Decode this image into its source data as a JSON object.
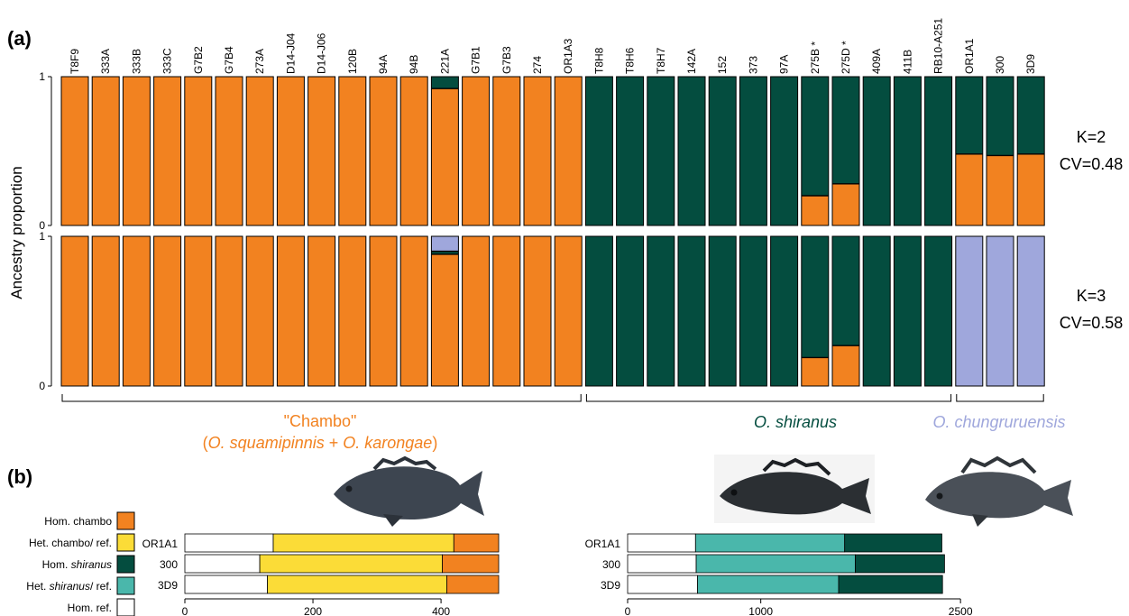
{
  "figure": {
    "panel_a_label": "(a)",
    "panel_b_label": "(b)",
    "ylabel": "Ancestry proportion",
    "y_ticks": [
      "1",
      "0"
    ],
    "runs": [
      {
        "k_label": "K=2",
        "cv_label": "CV=0.48"
      },
      {
        "k_label": "K=3",
        "cv_label": "CV=0.58"
      }
    ],
    "groups": [
      {
        "line1": "\"Chambo\"",
        "line2_parts": [
          "(",
          "O. squamipinnis",
          " + ",
          "O. karongae",
          ")"
        ],
        "color": "#f28220",
        "from": 0,
        "to": 16
      },
      {
        "line1": "O. shiranus",
        "color": "#044d3f",
        "from": 17,
        "to": 28
      },
      {
        "line1": "O. chungruruensis",
        "color": "#9fa7dc",
        "from": 29,
        "to": 31
      }
    ],
    "legend": [
      {
        "label": "Hom. chambo",
        "color": "#f28220"
      },
      {
        "label_parts": [
          "Het. chambo/ ref."
        ],
        "color": "#fbdc37"
      },
      {
        "label_parts": [
          "Hom. ",
          "shiranus"
        ],
        "color": "#044d3f"
      },
      {
        "label_parts": [
          "Het. ",
          "shiranus",
          "/ ref."
        ],
        "color": "#4ab7ab"
      },
      {
        "label": "Hom. ref.",
        "color": "#ffffff"
      }
    ],
    "colors": {
      "chambo": "#f28220",
      "shiranus": "#044d3f",
      "chungruruensis": "#9fa7dc",
      "het_chambo": "#fbdc37",
      "het_shiranus": "#4ab7ab",
      "hom_ref": "#ffffff"
    }
  },
  "chart_data": [
    {
      "type": "bar",
      "subtype": "stacked-proportion",
      "title": "K=2 CV=0.48",
      "categories": [
        "T8F9",
        "333A",
        "333B",
        "333C",
        "G7B2",
        "G7B4",
        "273A",
        "D14-J04",
        "D14-J06",
        "120B",
        "94A",
        "94B",
        "221A",
        "G7B1",
        "G7B3",
        "274",
        "OR1A3",
        "T8H8",
        "T8H6",
        "T8H7",
        "142A",
        "152",
        "373",
        "97A",
        "275B *",
        "275D *",
        "409A",
        "411B",
        "RB10-A251",
        "OR1A1",
        "300",
        "3D9"
      ],
      "ylim": [
        0,
        1
      ],
      "series": [
        {
          "color": "#f28220",
          "values": [
            1,
            1,
            1,
            1,
            1,
            1,
            1,
            1,
            1,
            1,
            1,
            1,
            0.92,
            1,
            1,
            1,
            1,
            0,
            0,
            0,
            0,
            0,
            0,
            0,
            0.2,
            0.28,
            0,
            0,
            0,
            0.48,
            0.47,
            0.48
          ]
        },
        {
          "color": "#044d3f",
          "values": [
            0,
            0,
            0,
            0,
            0,
            0,
            0,
            0,
            0,
            0,
            0,
            0,
            0.08,
            0,
            0,
            0,
            0,
            1,
            1,
            1,
            1,
            1,
            1,
            1,
            0.8,
            0.72,
            1,
            1,
            1,
            0.52,
            0.53,
            0.52
          ]
        }
      ]
    },
    {
      "type": "bar",
      "subtype": "stacked-proportion",
      "title": "K=3 CV=0.58",
      "categories": [
        "T8F9",
        "333A",
        "333B",
        "333C",
        "G7B2",
        "G7B4",
        "273A",
        "D14-J04",
        "D14-J06",
        "120B",
        "94A",
        "94B",
        "221A",
        "G7B1",
        "G7B3",
        "274",
        "OR1A3",
        "T8H8",
        "T8H6",
        "T8H7",
        "142A",
        "152",
        "373",
        "97A",
        "275B *",
        "275D *",
        "409A",
        "411B",
        "RB10-A251",
        "OR1A1",
        "300",
        "3D9"
      ],
      "ylim": [
        0,
        1
      ],
      "series": [
        {
          "color": "#f28220",
          "values": [
            1,
            1,
            1,
            1,
            1,
            1,
            1,
            1,
            1,
            1,
            1,
            1,
            0.88,
            1,
            1,
            1,
            1,
            0,
            0,
            0,
            0,
            0,
            0,
            0,
            0.19,
            0.27,
            0,
            0,
            0,
            0,
            0,
            0
          ]
        },
        {
          "color": "#044d3f",
          "values": [
            0,
            0,
            0,
            0,
            0,
            0,
            0,
            0,
            0,
            0,
            0,
            0,
            0.02,
            0,
            0,
            0,
            0,
            1,
            1,
            1,
            1,
            1,
            1,
            1,
            0.81,
            0.73,
            1,
            1,
            1,
            0,
            0,
            0
          ]
        },
        {
          "color": "#9fa7dc",
          "values": [
            0,
            0,
            0,
            0,
            0,
            0,
            0,
            0,
            0,
            0,
            0,
            0,
            0.1,
            0,
            0,
            0,
            0,
            0,
            0,
            0,
            0,
            0,
            0,
            0,
            0,
            0,
            0,
            0,
            0,
            1,
            1,
            1
          ]
        }
      ]
    },
    {
      "type": "bar",
      "subtype": "stacked-horizontal",
      "categories": [
        "OR1A1",
        "300",
        "3D9"
      ],
      "x_ticks": [
        0,
        200,
        400
      ],
      "xlim": [
        0,
        490
      ],
      "series": [
        {
          "color": "#ffffff",
          "values": [
            138,
            117,
            129
          ]
        },
        {
          "color": "#fbdc37",
          "values": [
            282,
            285,
            280
          ]
        },
        {
          "color": "#f28220",
          "values": [
            70,
            88,
            81
          ]
        }
      ]
    },
    {
      "type": "bar",
      "subtype": "stacked-horizontal",
      "categories": [
        "OR1A1",
        "300",
        "3D9"
      ],
      "x_ticks": [
        0,
        1000,
        2500
      ],
      "x_tick_labels": [
        "0",
        "1000",
        "2500"
      ],
      "xlim": [
        0,
        2350
      ],
      "series": [
        {
          "color": "#ffffff",
          "values": [
            510,
            515,
            525
          ]
        },
        {
          "color": "#4ab7ab",
          "values": [
            1120,
            1195,
            1060
          ]
        },
        {
          "color": "#044d3f",
          "values": [
            730,
            670,
            780
          ]
        }
      ]
    }
  ]
}
